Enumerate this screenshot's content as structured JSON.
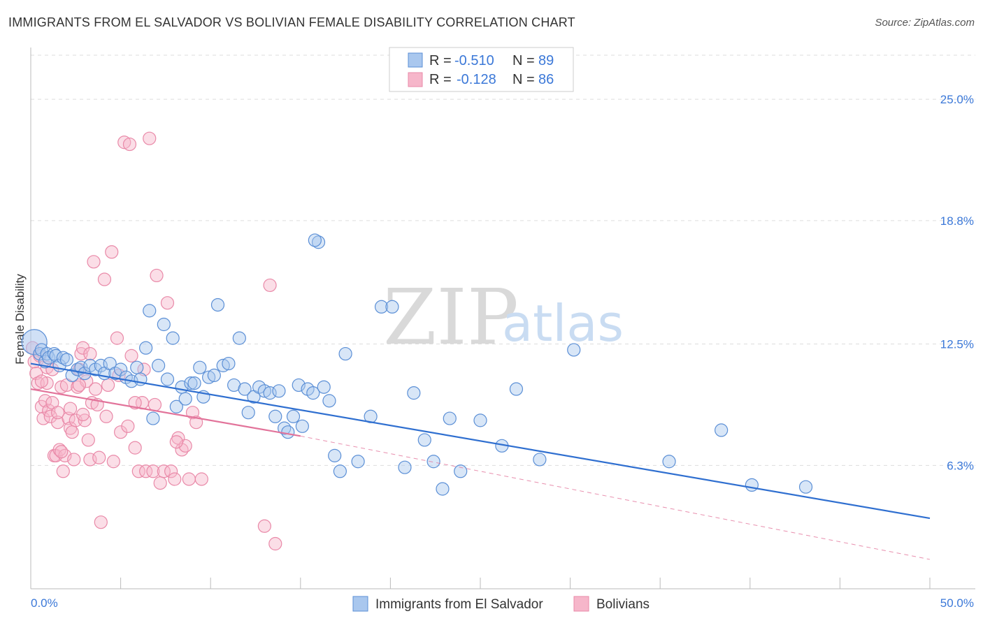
{
  "title": "IMMIGRANTS FROM EL SALVADOR VS BOLIVIAN FEMALE DISABILITY CORRELATION CHART",
  "source": "Source: ZipAtlas.com",
  "watermark": {
    "zip": "ZIP",
    "atlas": "atlas"
  },
  "colors": {
    "blue_fill": "#a9c7ee",
    "blue_stroke": "#5b8fd6",
    "blue_line": "#2f6fd0",
    "pink_fill": "#f6b6ca",
    "pink_stroke": "#e989a8",
    "pink_line": "#e2739a",
    "tick_text": "#3b78d8",
    "grid": "#dddddd"
  },
  "legend": {
    "rows": [
      {
        "r_label": "R = ",
        "r_value": "-0.510",
        "n_label": "N = ",
        "n_value": "89",
        "color": "blue"
      },
      {
        "r_label": "R = ",
        "r_value": "-0.128",
        "n_label": "N = ",
        "n_value": "86",
        "color": "pink"
      }
    ]
  },
  "chart_data": {
    "type": "scatter",
    "title": "IMMIGRANTS FROM EL SALVADOR VS BOLIVIAN FEMALE DISABILITY CORRELATION CHART",
    "xlabel": "",
    "ylabel": "Female Disability",
    "xlim": [
      0,
      50
    ],
    "ylim": [
      0,
      27.5
    ],
    "x_tick_labels": [
      "0.0%",
      "50.0%"
    ],
    "y_ticks": [
      6.3,
      12.5,
      18.8,
      25.0
    ],
    "y_tick_labels": [
      "6.3%",
      "12.5%",
      "18.8%",
      "25.0%"
    ],
    "grid": true,
    "legend_position": "top-center",
    "series": [
      {
        "name": "Immigrants from El Salvador",
        "color": "blue",
        "trend": {
          "x": [
            0,
            50
          ],
          "y": [
            11.5,
            3.6
          ],
          "dashed_from": null
        },
        "points": [
          [
            0.2,
            12.6
          ],
          [
            0.5,
            12.0
          ],
          [
            0.6,
            12.2
          ],
          [
            0.8,
            11.6
          ],
          [
            0.9,
            12.0
          ],
          [
            1.0,
            11.8
          ],
          [
            1.3,
            12.0
          ],
          [
            1.4,
            11.9
          ],
          [
            1.6,
            11.4
          ],
          [
            1.8,
            11.8
          ],
          [
            2.0,
            11.7
          ],
          [
            2.3,
            10.9
          ],
          [
            2.6,
            11.2
          ],
          [
            2.8,
            11.3
          ],
          [
            3.0,
            11.0
          ],
          [
            3.3,
            11.4
          ],
          [
            3.6,
            11.2
          ],
          [
            3.9,
            11.4
          ],
          [
            4.1,
            11.0
          ],
          [
            4.4,
            11.5
          ],
          [
            4.7,
            11.0
          ],
          [
            5.0,
            11.2
          ],
          [
            5.3,
            10.8
          ],
          [
            5.6,
            10.6
          ],
          [
            5.9,
            11.3
          ],
          [
            6.1,
            10.7
          ],
          [
            6.4,
            12.3
          ],
          [
            6.6,
            14.2
          ],
          [
            6.8,
            8.7
          ],
          [
            7.1,
            11.4
          ],
          [
            7.4,
            13.5
          ],
          [
            7.6,
            10.7
          ],
          [
            7.9,
            12.8
          ],
          [
            8.1,
            9.3
          ],
          [
            8.4,
            10.3
          ],
          [
            8.6,
            9.7
          ],
          [
            8.9,
            10.5
          ],
          [
            9.1,
            10.5
          ],
          [
            9.4,
            11.3
          ],
          [
            9.6,
            9.8
          ],
          [
            9.9,
            10.8
          ],
          [
            10.2,
            10.9
          ],
          [
            10.4,
            14.5
          ],
          [
            10.7,
            11.4
          ],
          [
            11.0,
            11.5
          ],
          [
            11.3,
            10.4
          ],
          [
            11.6,
            12.8
          ],
          [
            11.9,
            10.2
          ],
          [
            12.1,
            9.0
          ],
          [
            12.4,
            9.8
          ],
          [
            12.7,
            10.3
          ],
          [
            13.0,
            10.1
          ],
          [
            13.3,
            10.0
          ],
          [
            13.6,
            8.8
          ],
          [
            13.8,
            10.1
          ],
          [
            14.1,
            8.2
          ],
          [
            14.3,
            8.0
          ],
          [
            14.6,
            8.8
          ],
          [
            14.9,
            10.4
          ],
          [
            15.1,
            8.3
          ],
          [
            15.4,
            10.2
          ],
          [
            15.7,
            10.0
          ],
          [
            16.0,
            17.7
          ],
          [
            16.3,
            10.3
          ],
          [
            16.6,
            9.6
          ],
          [
            16.9,
            6.8
          ],
          [
            17.2,
            6.0
          ],
          [
            17.5,
            12.0
          ],
          [
            18.2,
            6.5
          ],
          [
            18.9,
            8.8
          ],
          [
            19.5,
            14.4
          ],
          [
            20.1,
            14.4
          ],
          [
            20.8,
            6.2
          ],
          [
            21.3,
            10.0
          ],
          [
            21.9,
            7.6
          ],
          [
            22.4,
            6.5
          ],
          [
            22.9,
            5.1
          ],
          [
            23.3,
            8.7
          ],
          [
            23.9,
            6.0
          ],
          [
            25.0,
            8.6
          ],
          [
            26.2,
            7.3
          ],
          [
            27.0,
            10.2
          ],
          [
            28.3,
            6.6
          ],
          [
            30.2,
            12.2
          ],
          [
            35.5,
            6.5
          ],
          [
            38.4,
            8.1
          ],
          [
            40.1,
            5.3
          ],
          [
            43.1,
            5.2
          ],
          [
            15.8,
            17.8
          ]
        ]
      },
      {
        "name": "Bolivians",
        "color": "pink",
        "trend": {
          "x": [
            0,
            15,
            50
          ],
          "y": [
            10.2,
            7.8,
            1.5
          ],
          "dashed_from": 15
        },
        "points": [
          [
            0.1,
            12.3
          ],
          [
            0.2,
            11.6
          ],
          [
            0.3,
            11.0
          ],
          [
            0.4,
            10.5
          ],
          [
            0.5,
            11.9
          ],
          [
            0.6,
            9.3
          ],
          [
            0.7,
            8.7
          ],
          [
            0.8,
            9.6
          ],
          [
            0.9,
            10.5
          ],
          [
            1.0,
            9.1
          ],
          [
            1.1,
            8.8
          ],
          [
            1.2,
            9.5
          ],
          [
            1.3,
            6.8
          ],
          [
            1.4,
            6.8
          ],
          [
            1.5,
            8.5
          ],
          [
            1.6,
            7.1
          ],
          [
            1.7,
            10.3
          ],
          [
            1.8,
            6.0
          ],
          [
            1.9,
            6.8
          ],
          [
            2.0,
            10.4
          ],
          [
            2.1,
            8.7
          ],
          [
            2.2,
            8.2
          ],
          [
            2.3,
            8.0
          ],
          [
            2.4,
            6.6
          ],
          [
            2.5,
            8.6
          ],
          [
            2.6,
            10.3
          ],
          [
            2.7,
            11.2
          ],
          [
            2.8,
            12.0
          ],
          [
            2.9,
            12.3
          ],
          [
            3.0,
            8.6
          ],
          [
            3.1,
            10.6
          ],
          [
            3.2,
            7.6
          ],
          [
            3.3,
            6.6
          ],
          [
            3.4,
            9.5
          ],
          [
            3.5,
            16.7
          ],
          [
            3.6,
            10.2
          ],
          [
            3.8,
            6.7
          ],
          [
            3.9,
            3.4
          ],
          [
            4.1,
            15.8
          ],
          [
            4.3,
            10.4
          ],
          [
            4.5,
            17.2
          ],
          [
            4.6,
            6.5
          ],
          [
            4.8,
            12.8
          ],
          [
            5.0,
            8.0
          ],
          [
            5.2,
            22.8
          ],
          [
            5.4,
            8.3
          ],
          [
            5.6,
            11.9
          ],
          [
            5.8,
            7.2
          ],
          [
            6.0,
            6.0
          ],
          [
            6.2,
            9.5
          ],
          [
            6.4,
            6.0
          ],
          [
            6.6,
            23.0
          ],
          [
            6.8,
            6.0
          ],
          [
            7.0,
            16.0
          ],
          [
            7.2,
            5.4
          ],
          [
            7.4,
            6.0
          ],
          [
            7.6,
            14.6
          ],
          [
            7.8,
            6.0
          ],
          [
            8.0,
            5.6
          ],
          [
            8.2,
            7.7
          ],
          [
            8.4,
            7.1
          ],
          [
            8.6,
            7.3
          ],
          [
            8.8,
            5.6
          ],
          [
            9.0,
            9.0
          ],
          [
            9.2,
            8.5
          ],
          [
            9.5,
            5.6
          ],
          [
            13.0,
            3.2
          ],
          [
            13.3,
            15.5
          ],
          [
            13.6,
            2.3
          ],
          [
            3.7,
            9.4
          ],
          [
            2.9,
            8.9
          ],
          [
            1.7,
            7.0
          ],
          [
            4.2,
            8.8
          ],
          [
            5.5,
            22.7
          ],
          [
            0.9,
            11.3
          ],
          [
            1.5,
            9.0
          ],
          [
            2.7,
            10.4
          ],
          [
            3.3,
            12.0
          ],
          [
            4.9,
            10.9
          ],
          [
            6.3,
            11.2
          ],
          [
            0.6,
            10.6
          ],
          [
            1.2,
            11.2
          ],
          [
            2.2,
            9.2
          ],
          [
            5.8,
            9.5
          ],
          [
            6.9,
            9.4
          ],
          [
            8.1,
            7.5
          ]
        ]
      }
    ]
  },
  "bottom_legend": [
    {
      "label": "Immigrants from El Salvador",
      "color": "blue"
    },
    {
      "label": "Bolivians",
      "color": "pink"
    }
  ]
}
